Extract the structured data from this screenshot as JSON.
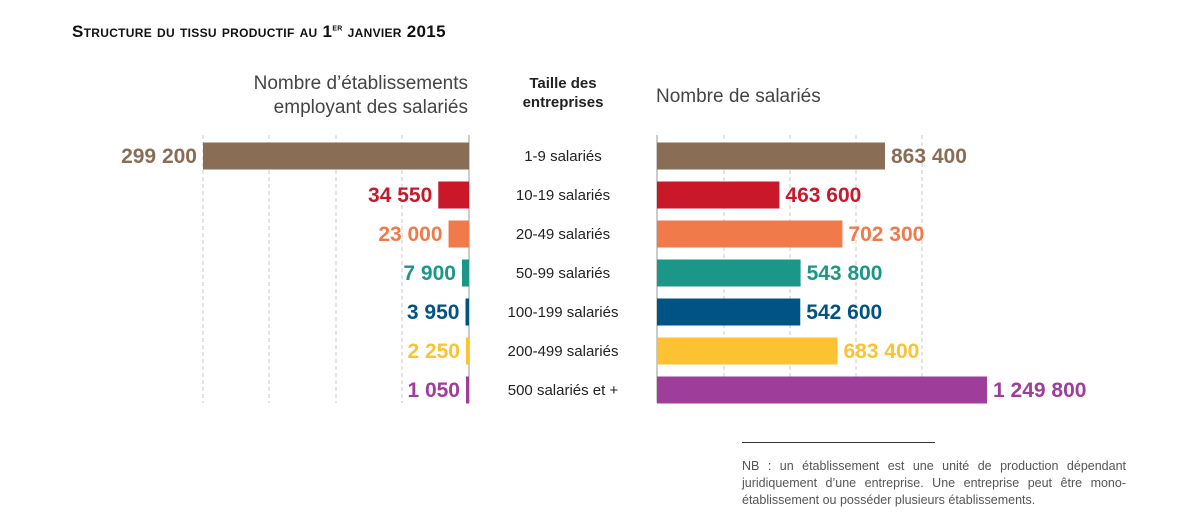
{
  "title_main": "Structure du tissu productif au 1",
  "title_sup": "er",
  "title_end": " janvier 2015",
  "left_header_line1": "Nombre d’établissements",
  "left_header_line2": "employant des salariés",
  "mid_header_line1": "Taille des",
  "mid_header_line2": "entreprises",
  "right_header": "Nombre de salariés",
  "note": "NB : un établissement est une unité de production dépendant juridiquement d’une entreprise. Une entreprise peut être mono-établissement ou posséder plusieurs établissements.",
  "chart_data": [
    {
      "type": "bar",
      "orientation": "horizontal",
      "direction": "right-to-left",
      "title": "Nombre d’établissements employant des salariés",
      "categories": [
        "1-9 salariés",
        "10-19 salariés",
        "20-49 salariés",
        "50-99 salariés",
        "100-199 salariés",
        "200-499 salariés",
        "500 salariés et +"
      ],
      "values": [
        299200,
        34550,
        23000,
        7900,
        3950,
        2250,
        1050
      ],
      "labels": [
        "299 200",
        "34 550",
        "23 000",
        "7 900",
        "3 950",
        "2 250",
        "1 050"
      ],
      "colors": [
        "#8a6d55",
        "#c8182a",
        "#f07a49",
        "#1c9688",
        "#005484",
        "#fdc231",
        "#9f3e9a"
      ],
      "xlim": [
        0,
        299200
      ],
      "grid": "vertical dashed"
    },
    {
      "type": "bar",
      "orientation": "horizontal",
      "direction": "left-to-right",
      "title": "Nombre de salariés",
      "categories": [
        "1-9 salariés",
        "10-19 salariés",
        "20-49 salariés",
        "50-99 salariés",
        "100-199 salariés",
        "200-499 salariés",
        "500 salariés et +"
      ],
      "values": [
        863400,
        463600,
        702300,
        543800,
        542600,
        683400,
        1249800
      ],
      "labels": [
        "863 400",
        "463 600",
        "702 300",
        "543 800",
        "542 600",
        "683 400",
        "1 249 800"
      ],
      "colors": [
        "#8a6d55",
        "#c8182a",
        "#f07a49",
        "#1c9688",
        "#005484",
        "#fdc231",
        "#9f3e9a"
      ],
      "xlim": [
        0,
        1249800
      ],
      "grid": "vertical dashed"
    }
  ]
}
